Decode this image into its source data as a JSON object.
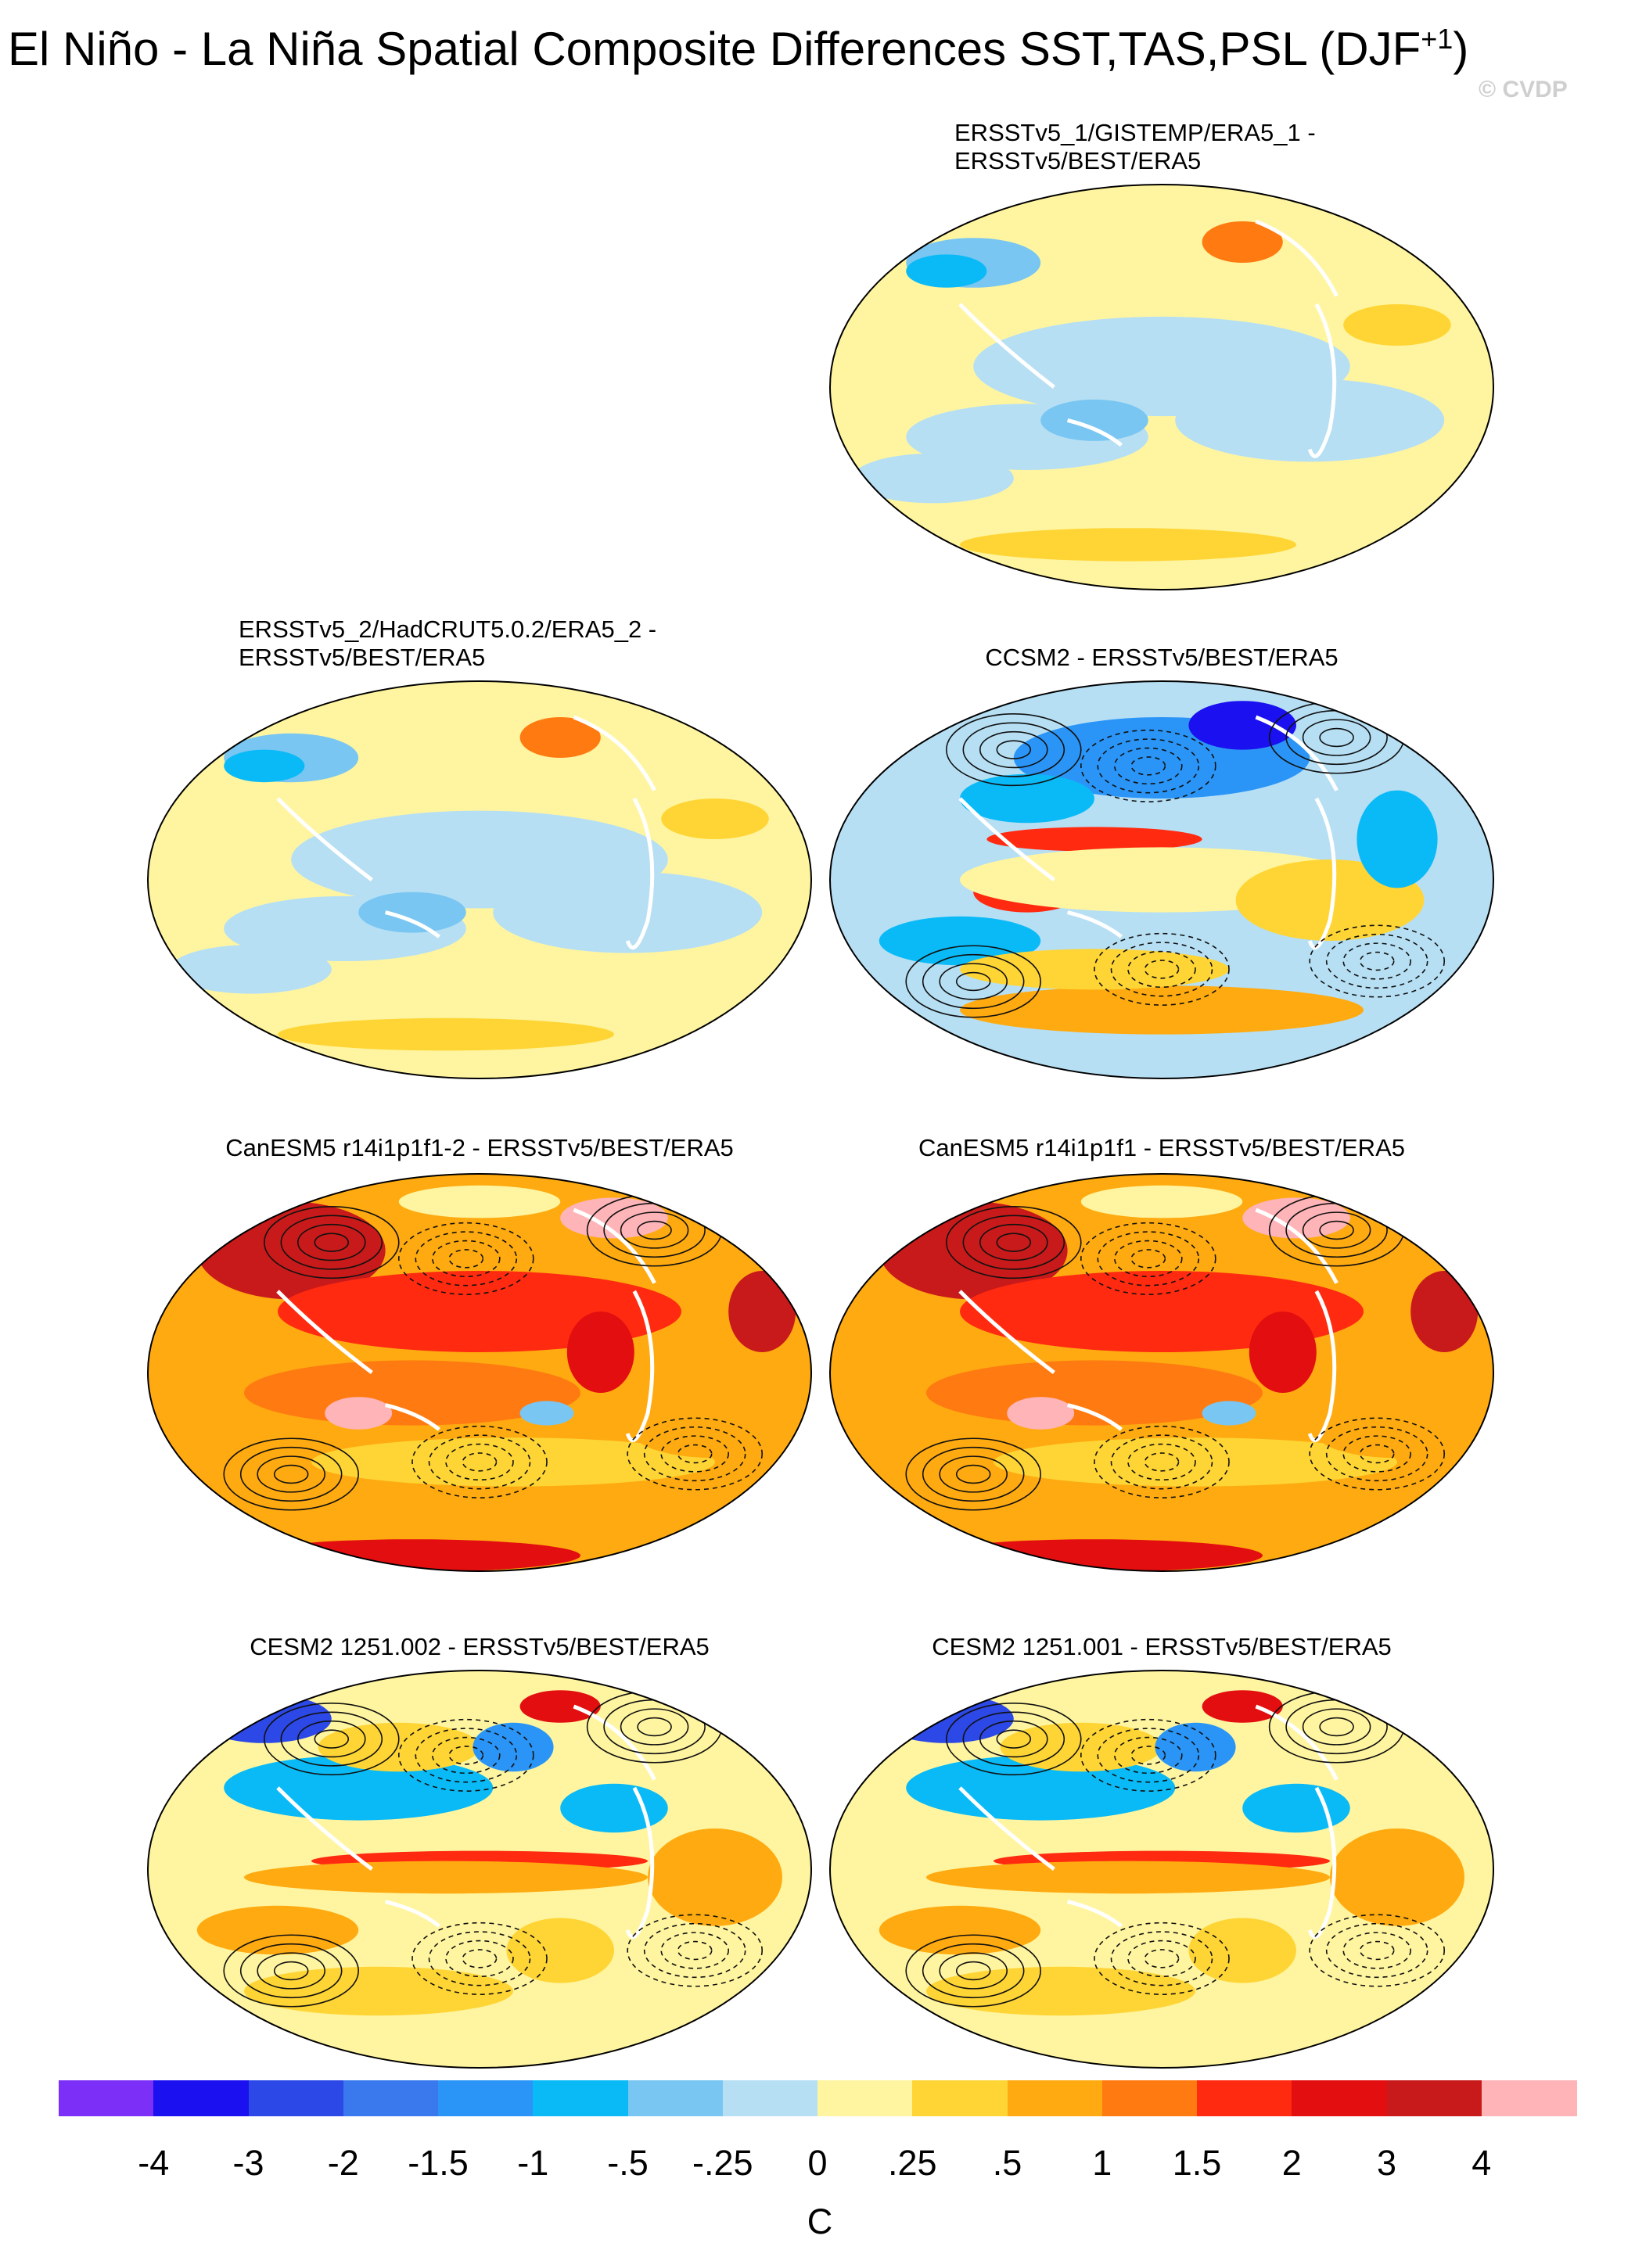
{
  "title": {
    "main": "El Niño - La Niña Spatial Composite Differences SST,TAS,PSL (DJF",
    "superscript": "+1",
    "close": ")"
  },
  "credit": "© CVDP",
  "panels": [
    {
      "id": "p1",
      "title_line1": "ERSSTv5_1/GISTEMP/ERA5_1 -",
      "title_line2": "ERSSTv5/BEST/ERA5",
      "style": "obs",
      "contours": false
    },
    {
      "id": "p2",
      "title_line1": "ERSSTv5_2/HadCRUT5.0.2/ERA5_2 -",
      "title_line2": "ERSSTv5/BEST/ERA5",
      "style": "obs",
      "contours": false
    },
    {
      "id": "p3",
      "title_line1": "CCSM2 - ERSSTv5/BEST/ERA5",
      "title_line2": "",
      "style": "ccsm",
      "contours": true
    },
    {
      "id": "p4",
      "title_line1": "CanESM5 r14i1p1f1-2 - ERSSTv5/BEST/ERA5",
      "title_line2": "",
      "style": "canesm",
      "contours": true
    },
    {
      "id": "p5",
      "title_line1": "CanESM5 r14i1p1f1 - ERSSTv5/BEST/ERA5",
      "title_line2": "",
      "style": "canesm",
      "contours": true
    },
    {
      "id": "p6",
      "title_line1": "CESM2 1251.002 - ERSSTv5/BEST/ERA5",
      "title_line2": "",
      "style": "cesm",
      "contours": true
    },
    {
      "id": "p7",
      "title_line1": "CESM2 1251.001 - ERSSTv5/BEST/ERA5",
      "title_line2": "",
      "style": "cesm",
      "contours": true
    }
  ],
  "colorbar": {
    "unit": "C",
    "tick_labels": [
      "-4",
      "-3",
      "-2",
      "-1.5",
      "-1",
      "-.5",
      "-.25",
      "0",
      ".25",
      ".5",
      "1",
      "1.5",
      "2",
      "3",
      "4"
    ],
    "colors": [
      "#7b2ff7",
      "#1a10f0",
      "#2c48e6",
      "#3a78ee",
      "#2a95f7",
      "#0abaf6",
      "#79c6f2",
      "#b6dff4",
      "#fff5a0",
      "#ffd535",
      "#ffaa10",
      "#ff7a10",
      "#ff2a10",
      "#e20e10",
      "#c81a1a",
      "#ffb4b8"
    ]
  },
  "chart_data": {
    "type": "heatmap",
    "projection": "Robinson (global)",
    "variables": [
      "SST",
      "TAS",
      "PSL"
    ],
    "season": "DJF+1",
    "color_scale_levels": [
      -4,
      -3,
      -2,
      -1.5,
      -1,
      -0.5,
      -0.25,
      0,
      0.25,
      0.5,
      1,
      1.5,
      2,
      3,
      4
    ],
    "unit": "C",
    "panels": [
      {
        "title": "ERSSTv5_1/GISTEMP/ERA5_1 - ERSSTv5/BEST/ERA5",
        "typical_range": [
          -1,
          1
        ],
        "psl_contours": false
      },
      {
        "title": "ERSSTv5_2/HadCRUT5.0.2/ERA5_2 - ERSSTv5/BEST/ERA5",
        "typical_range": [
          -1,
          1
        ],
        "psl_contours": false
      },
      {
        "title": "CCSM2 - ERSSTv5/BEST/ERA5",
        "typical_range": [
          -3,
          2
        ],
        "psl_contours": true
      },
      {
        "title": "CanESM5 r14i1p1f1-2 - ERSSTv5/BEST/ERA5",
        "typical_range": [
          -0.5,
          4
        ],
        "psl_contours": true
      },
      {
        "title": "CanESM5 r14i1p1f1 - ERSSTv5/BEST/ERA5",
        "typical_range": [
          -0.5,
          4
        ],
        "psl_contours": true
      },
      {
        "title": "CESM2 1251.002 - ERSSTv5/BEST/ERA5",
        "typical_range": [
          -3,
          2
        ],
        "psl_contours": true
      },
      {
        "title": "CESM2 1251.001 - ERSSTv5/BEST/ERA5",
        "typical_range": [
          -3,
          2
        ],
        "psl_contours": true
      }
    ]
  }
}
